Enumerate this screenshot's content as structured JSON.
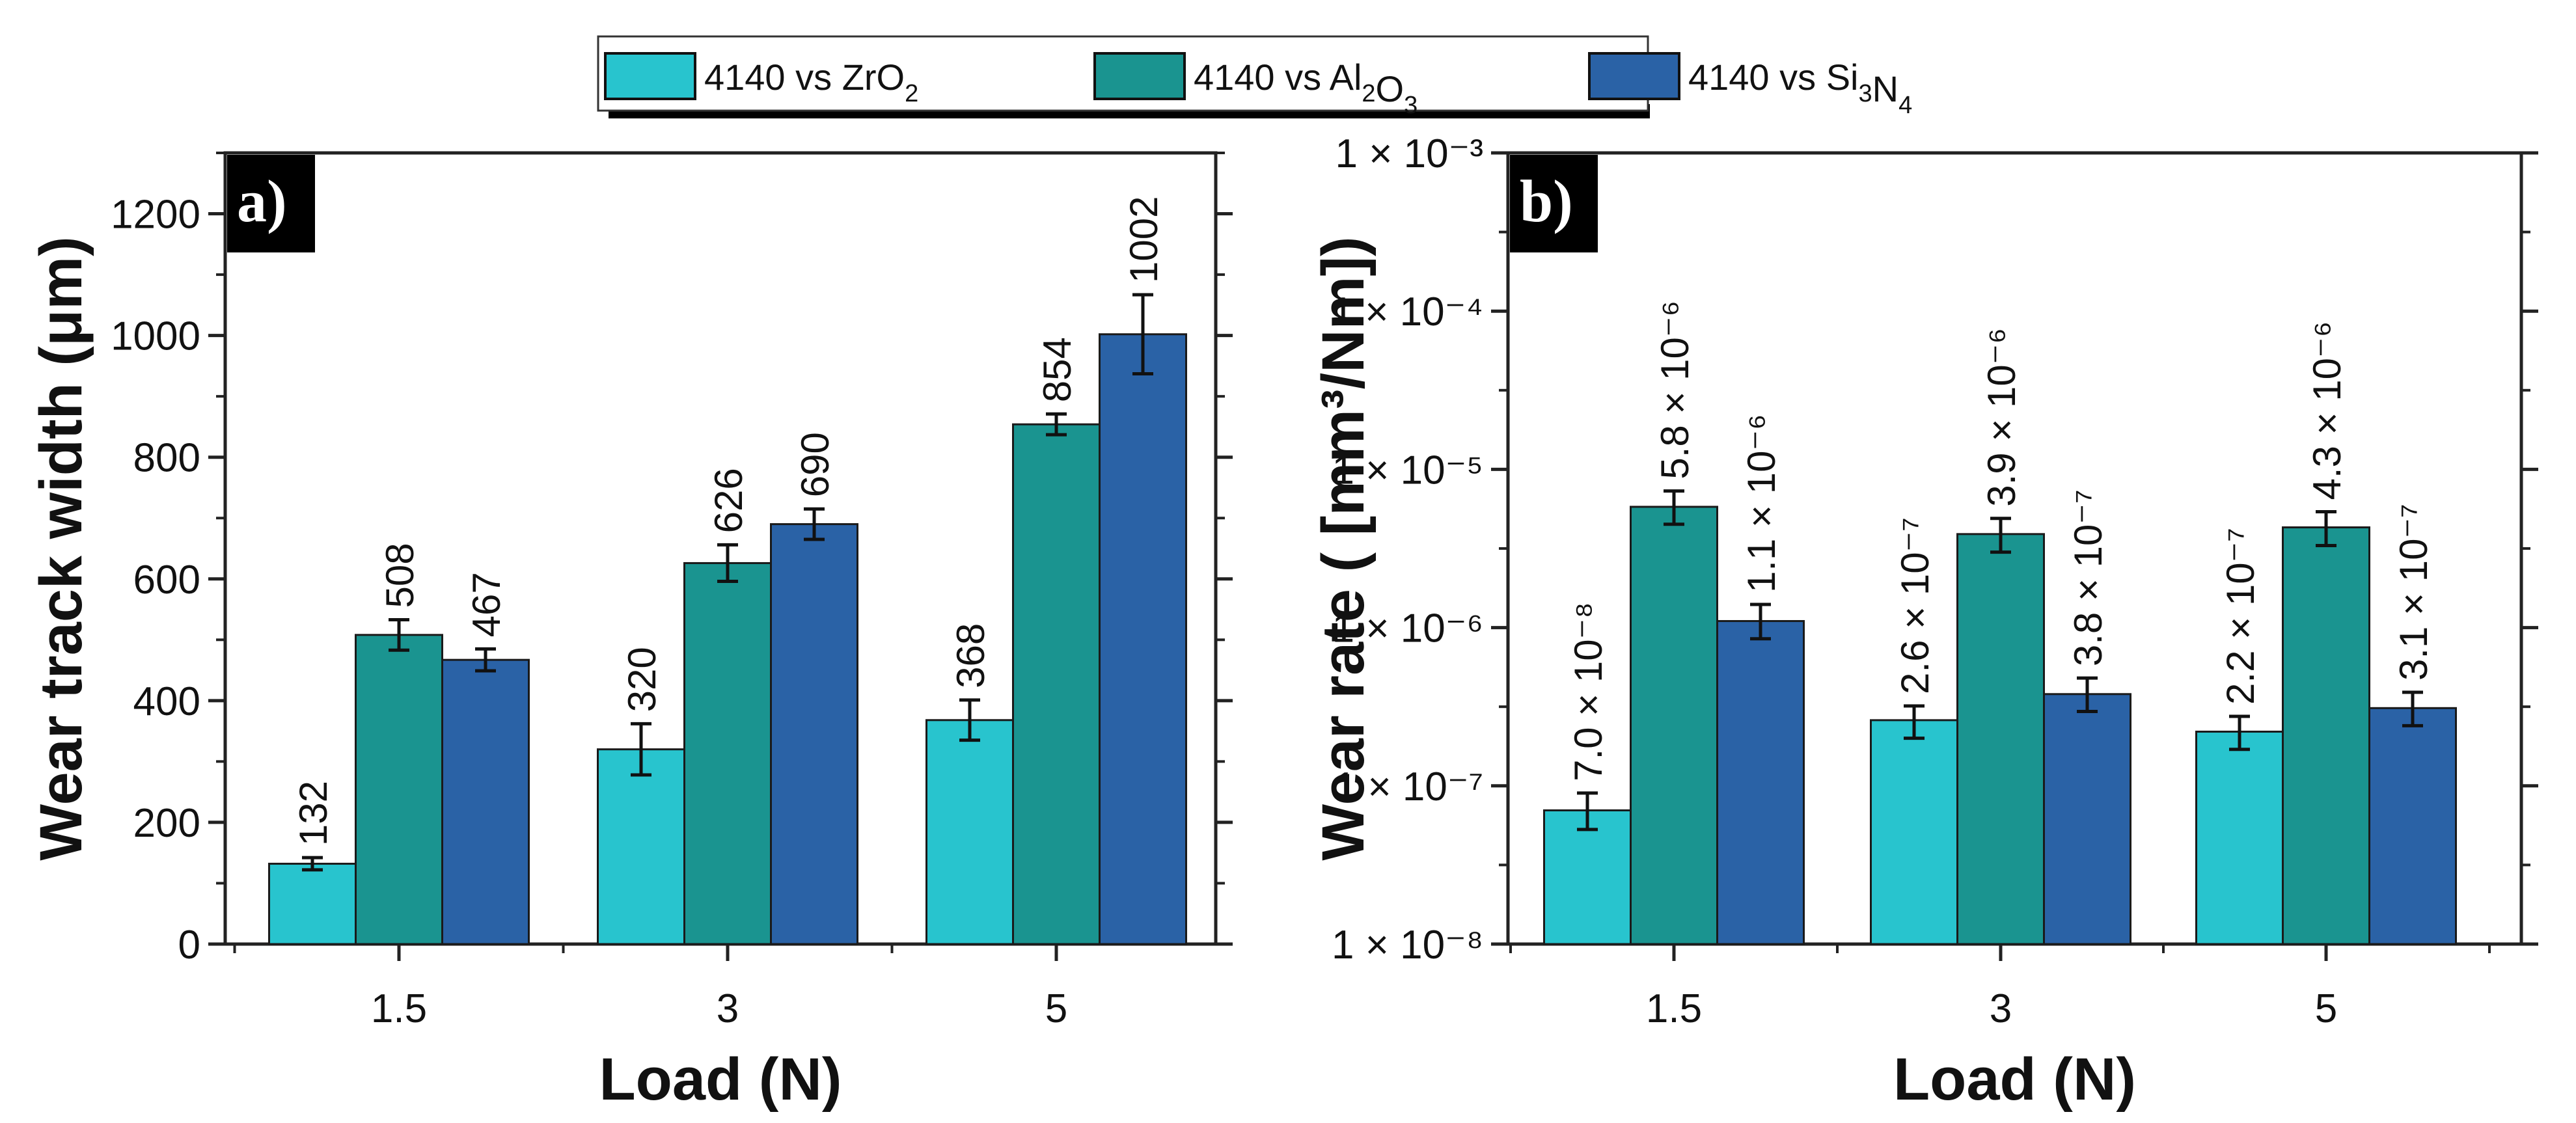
{
  "legend": {
    "entries": [
      {
        "base": "4140 vs ZrO",
        "parts": [
          [
            "ZrO",
            "2",
            ""
          ]
        ],
        "color": "#28c4ce"
      },
      {
        "base": "4140 vs Al2O3",
        "parts": [
          [
            "Al",
            "2",
            ""
          ],
          [
            "O",
            "3",
            ""
          ]
        ],
        "color": "#1a9490"
      },
      {
        "base": "4140 vs Si3N4",
        "parts": [
          [
            "Si",
            "3",
            ""
          ],
          [
            "N",
            "4",
            ""
          ]
        ],
        "color": "#2a62a6"
      }
    ],
    "prefix": "4140 vs "
  },
  "chart_data": [
    {
      "type": "bar",
      "panel_label": "a)",
      "title": "",
      "xlabel": "Load (N)",
      "ylabel": "Wear track width (μm)",
      "categories": [
        "1.5",
        "3",
        "5"
      ],
      "ylim": [
        0,
        1300
      ],
      "yticks": [
        0,
        200,
        400,
        600,
        800,
        1000,
        1200
      ],
      "ytick_labels": [
        "0",
        "200",
        "400",
        "600",
        "800",
        "1000",
        "1200"
      ],
      "yscale": "linear",
      "series": [
        {
          "name": "4140 vs ZrO2",
          "values": [
            132,
            320,
            368
          ],
          "errors": [
            10,
            42,
            33
          ],
          "labels": [
            "132",
            "320",
            "368"
          ]
        },
        {
          "name": "4140 vs Al2O3",
          "values": [
            508,
            626,
            854
          ],
          "errors": [
            25,
            30,
            17
          ],
          "labels": [
            "508",
            "626",
            "854"
          ]
        },
        {
          "name": "4140 vs Si3N4",
          "values": [
            467,
            690,
            1002
          ],
          "errors": [
            18,
            25,
            65
          ],
          "labels": [
            "467",
            "690",
            "1002"
          ]
        }
      ]
    },
    {
      "type": "bar",
      "panel_label": "b)",
      "title": "",
      "xlabel": "Load (N)",
      "ylabel": "Wear rate ( [mm³/Nm])",
      "categories": [
        "1.5",
        "3",
        "5"
      ],
      "ylim": [
        1e-08,
        0.001
      ],
      "yticks": [
        1e-08,
        1e-07,
        1e-06,
        1e-05,
        0.0001,
        0.001
      ],
      "ytick_labels": [
        "1 × 10⁻⁸",
        "1 × 10⁻⁷",
        "1 × 10⁻⁶",
        "1 × 10⁻⁵",
        "1 × 10⁻⁴",
        "1 × 10⁻³"
      ],
      "yscale": "log",
      "series": [
        {
          "name": "4140 vs ZrO2",
          "values": [
            7e-08,
            2.6e-07,
            2.2e-07
          ],
          "error_low": [
            5.3e-08,
            2e-07,
            1.7e-07
          ],
          "error_high": [
            9e-08,
            3.2e-07,
            2.75e-07
          ],
          "labels": [
            "7.0 × 10⁻⁸",
            "2.6 × 10⁻⁷",
            "2.2 × 10⁻⁷"
          ]
        },
        {
          "name": "4140 vs Al2O3",
          "values": [
            5.8e-06,
            3.9e-06,
            4.3e-06
          ],
          "error_low": [
            4.5e-06,
            3e-06,
            3.3e-06
          ],
          "error_high": [
            7.3e-06,
            4.9e-06,
            5.4e-06
          ],
          "labels": [
            "5.8 × 10⁻⁶",
            "3.9 × 10⁻⁶",
            "4.3 × 10⁻⁶"
          ]
        },
        {
          "name": "4140 vs Si3N4",
          "values": [
            1.1e-06,
            3.8e-07,
            3.1e-07
          ],
          "error_low": [
            8.5e-07,
            2.95e-07,
            2.4e-07
          ],
          "error_high": [
            1.4e-06,
            4.8e-07,
            3.9e-07
          ],
          "labels": [
            "1.1 × 10⁻⁶",
            "3.8 × 10⁻⁷",
            "3.1 × 10⁻⁷"
          ]
        }
      ]
    }
  ]
}
